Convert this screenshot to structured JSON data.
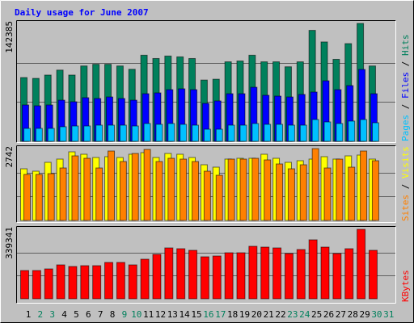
{
  "title": "Daily usage for June 2007",
  "legend_separator": " / ",
  "chart_data": [
    {
      "type": "bar",
      "ylim": [
        0,
        142385
      ],
      "yticks": [
        142385
      ],
      "legend_position": "right",
      "series": [
        {
          "name": "Hits",
          "color": "#00805c",
          "values": [
            77000,
            76000,
            80000,
            86000,
            80000,
            91000,
            93000,
            93000,
            91000,
            87000,
            104000,
            100000,
            103000,
            102000,
            100000,
            74000,
            75000,
            96000,
            97000,
            104000,
            96000,
            96000,
            90000,
            96000,
            134000,
            120000,
            99000,
            118000,
            142385,
            91000,
            null
          ]
        },
        {
          "name": "Files",
          "color": "#0000ff",
          "values": [
            43900,
            42900,
            43900,
            49700,
            47800,
            52700,
            51700,
            53600,
            51700,
            49700,
            57500,
            58500,
            62400,
            63400,
            62400,
            45800,
            48800,
            57500,
            57500,
            65300,
            55600,
            54600,
            53600,
            56600,
            59500,
            73100,
            62400,
            67300,
            86800,
            57500,
            null
          ]
        },
        {
          "name": "Pages",
          "color": "#00c0ff",
          "values": [
            15600,
            15600,
            15600,
            17600,
            18500,
            18500,
            19500,
            19500,
            19500,
            18500,
            21500,
            20500,
            21500,
            20500,
            19500,
            14600,
            14600,
            19500,
            19500,
            21500,
            20500,
            20500,
            19500,
            19500,
            26300,
            23400,
            21500,
            24400,
            26300,
            22400,
            null
          ]
        }
      ]
    },
    {
      "type": "bar",
      "ylim": [
        0,
        2742
      ],
      "yticks": [
        2742
      ],
      "legend_position": "right",
      "series": [
        {
          "name": "Visits",
          "color": "#ffff00",
          "values": [
            1971,
            1879,
            2218,
            2341,
            2618,
            2526,
            2402,
            2433,
            2402,
            2526,
            2587,
            2402,
            2556,
            2526,
            2402,
            2125,
            2033,
            2341,
            2372,
            2372,
            2526,
            2372,
            2218,
            2279,
            2341,
            2433,
            2341,
            2464,
            2495,
            2341,
            null
          ]
        },
        {
          "name": "Sites",
          "color": "#ff8000",
          "values": [
            1756,
            1756,
            1786,
            2002,
            2464,
            2372,
            2002,
            2649,
            2248,
            2556,
            2710,
            2248,
            2372,
            2341,
            2248,
            1879,
            1725,
            2341,
            2341,
            2372,
            2310,
            2156,
            1971,
            2125,
            2742,
            2002,
            2341,
            2033,
            2649,
            2279,
            null
          ]
        }
      ]
    },
    {
      "type": "bar",
      "ylim": [
        0,
        339341
      ],
      "yticks": [
        339341
      ],
      "legend_position": "right",
      "categories": [
        "1",
        "2",
        "3",
        "4",
        "5",
        "6",
        "7",
        "8",
        "9",
        "10",
        "11",
        "12",
        "13",
        "14",
        "15",
        "16",
        "17",
        "18",
        "19",
        "20",
        "21",
        "22",
        "23",
        "24",
        "25",
        "26",
        "27",
        "28",
        "29",
        "30",
        "31"
      ],
      "category_colors": [
        "#000000",
        "#00805c",
        "#00805c",
        "#000000",
        "#000000",
        "#000000",
        "#000000",
        "#000000",
        "#00805c",
        "#00805c",
        "#000000",
        "#000000",
        "#000000",
        "#000000",
        "#000000",
        "#00805c",
        "#00805c",
        "#000000",
        "#000000",
        "#000000",
        "#000000",
        "#000000",
        "#00805c",
        "#00805c",
        "#000000",
        "#000000",
        "#000000",
        "#000000",
        "#000000",
        "#00805c",
        "#00805c"
      ],
      "series": [
        {
          "name": "KBytes",
          "color": "#ff0000",
          "values": [
            138100,
            138100,
            146000,
            165700,
            157800,
            161800,
            161800,
            177600,
            177600,
            165700,
            193400,
            217000,
            248600,
            244700,
            236800,
            205200,
            209100,
            224900,
            224900,
            256500,
            252500,
            248600,
            221000,
            240700,
            288100,
            252500,
            221000,
            244700,
            339341,
            236800,
            null
          ]
        }
      ]
    }
  ]
}
